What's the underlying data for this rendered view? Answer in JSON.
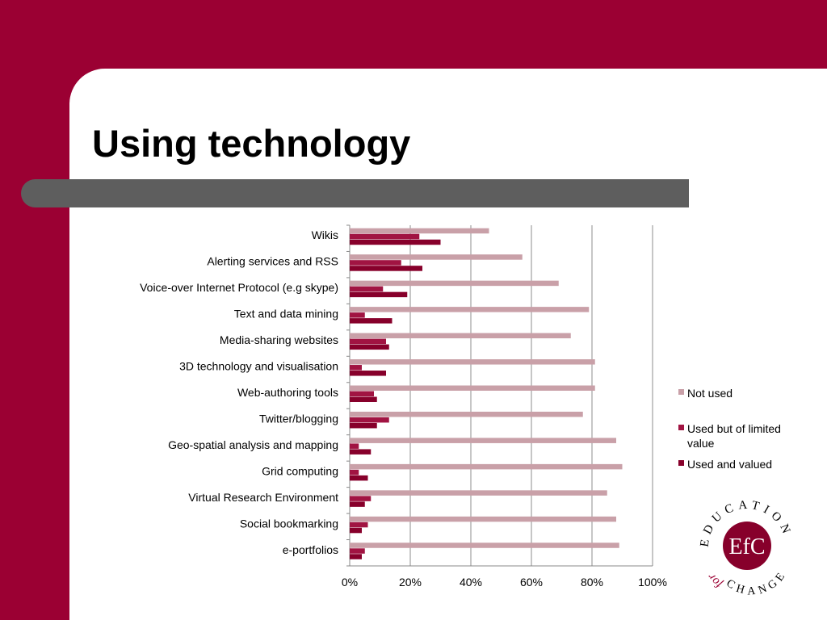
{
  "slide": {
    "title": "Using technology"
  },
  "colors": {
    "background": "#9b0033",
    "title_band": "#5e5e5e",
    "not_used": "#c9a0a8",
    "used_limited": "#a11442",
    "used_valued": "#87002b"
  },
  "chart_data": {
    "type": "bar",
    "orientation": "horizontal",
    "categories": [
      "Wikis",
      "Alerting services and RSS",
      "Voice-over Internet Protocol (e.g skype)",
      "Text and data mining",
      "Media-sharing websites",
      "3D technology and visualisation",
      "Web-authoring tools",
      "Twitter/blogging",
      "Geo-spatial analysis and mapping",
      "Grid computing",
      "Virtual Research Environment",
      "Social bookmarking",
      "e-portfolios"
    ],
    "series": [
      {
        "name": "Not used",
        "color": "#c9a0a8",
        "values": [
          46,
          57,
          69,
          79,
          73,
          81,
          81,
          77,
          88,
          90,
          85,
          88,
          89
        ]
      },
      {
        "name": "Used but of limited value",
        "color": "#a11442",
        "values": [
          23,
          17,
          11,
          5,
          12,
          4,
          8,
          13,
          3,
          3,
          7,
          6,
          5
        ]
      },
      {
        "name": "Used and valued",
        "color": "#87002b",
        "values": [
          30,
          24,
          19,
          14,
          13,
          12,
          9,
          9,
          7,
          6,
          5,
          4,
          4
        ]
      }
    ],
    "x_ticks": [
      "0%",
      "20%",
      "40%",
      "60%",
      "80%",
      "100%"
    ],
    "xlim": [
      0,
      100
    ],
    "grid": true,
    "legend_position": "right"
  },
  "logo": {
    "ring_text": "EDUCATION",
    "bottom_text": "CHANGE",
    "side_text": "for",
    "monogram": "EfC"
  }
}
